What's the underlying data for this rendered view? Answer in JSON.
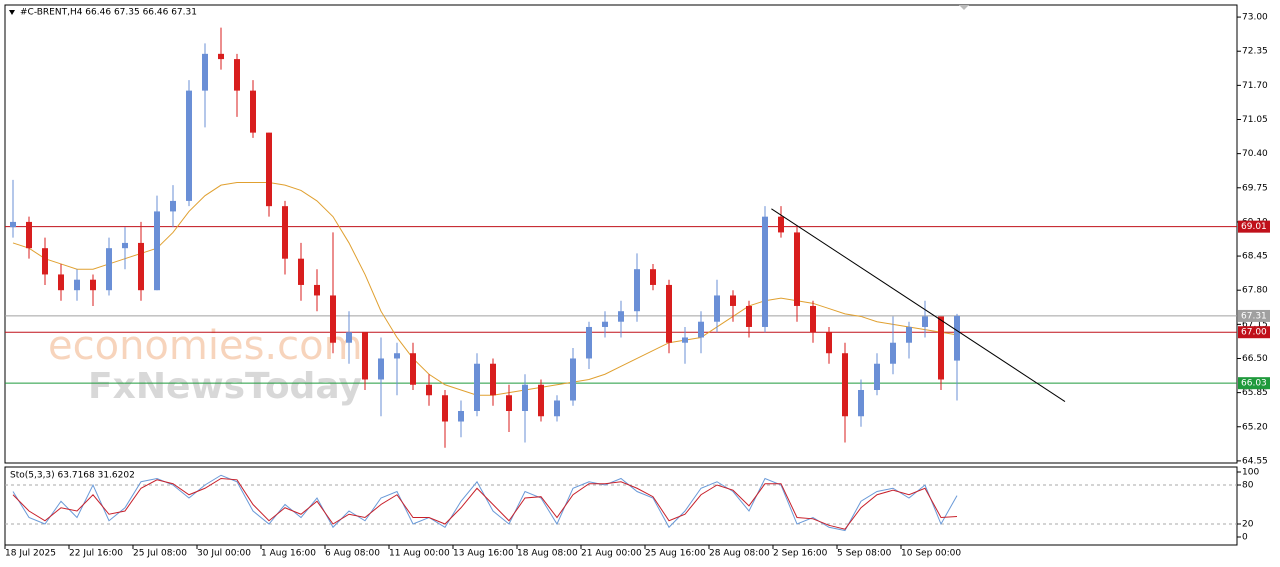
{
  "chart_data": [
    {
      "type": "candlestick",
      "title": "#C-BRENT,H4  66.46 67.35 66.46 67.31",
      "watermark": [
        "economies.com",
        "FxNewsToday"
      ],
      "ylim": [
        64.51,
        73.23
      ],
      "yticks": [
        {
          "value": 73.0,
          "label": "73.00"
        },
        {
          "value": 72.35,
          "label": "72.35"
        },
        {
          "value": 71.7,
          "label": "71.70"
        },
        {
          "value": 71.05,
          "label": "71.05"
        },
        {
          "value": 70.4,
          "label": "70.40"
        },
        {
          "value": 69.75,
          "label": "69.75"
        },
        {
          "value": 69.1,
          "label": "69.10"
        },
        {
          "value": 68.45,
          "label": "68.45"
        },
        {
          "value": 67.8,
          "label": "67.80"
        },
        {
          "value": 67.15,
          "label": "67.15"
        },
        {
          "value": 66.5,
          "label": "66.50"
        },
        {
          "value": 65.85,
          "label": "65.85"
        },
        {
          "value": 65.2,
          "label": "65.20"
        },
        {
          "value": 64.55,
          "label": "64.55"
        }
      ],
      "up_color": "#6a8fd6",
      "down_color": "#d81e1e",
      "open": [
        69.0,
        69.1,
        68.6,
        68.1,
        67.8,
        68.0,
        67.8,
        68.6,
        68.7,
        67.8,
        69.3,
        69.5,
        71.6,
        72.3,
        72.2,
        71.6,
        70.8,
        69.4,
        68.4,
        67.9,
        67.7,
        66.8,
        67.0,
        66.1,
        66.5,
        66.6,
        66.0,
        65.8,
        65.3,
        65.5,
        66.4,
        65.8,
        65.5,
        66.0,
        65.4,
        65.7,
        66.5,
        67.1,
        67.2,
        67.4,
        68.2,
        67.9,
        66.8,
        66.9,
        67.2,
        67.7,
        67.5,
        67.1,
        69.2,
        68.9,
        67.5,
        67.0,
        66.6,
        65.4,
        65.9,
        66.4,
        66.8,
        67.1,
        67.3,
        66.46
      ],
      "high": [
        69.9,
        69.2,
        68.8,
        68.3,
        68.2,
        68.1,
        68.8,
        69.0,
        69.1,
        69.6,
        69.8,
        71.8,
        72.5,
        72.8,
        72.3,
        71.8,
        70.8,
        69.5,
        68.7,
        68.2,
        68.9,
        67.4,
        67.0,
        66.9,
        66.8,
        66.8,
        66.2,
        65.9,
        65.7,
        66.6,
        66.5,
        66.0,
        66.2,
        66.1,
        65.8,
        66.7,
        67.2,
        67.4,
        67.6,
        68.5,
        68.3,
        68.0,
        67.1,
        67.4,
        68.0,
        67.8,
        67.6,
        69.4,
        69.4,
        69.0,
        67.6,
        67.1,
        66.8,
        66.1,
        66.6,
        67.3,
        67.2,
        67.6,
        67.3,
        67.35
      ],
      "low": [
        68.8,
        68.4,
        67.9,
        67.6,
        67.6,
        67.5,
        67.7,
        68.2,
        67.6,
        67.8,
        69.0,
        69.4,
        70.9,
        72.0,
        71.1,
        70.7,
        69.2,
        68.1,
        67.6,
        67.4,
        66.6,
        66.4,
        65.9,
        65.4,
        65.8,
        65.9,
        65.6,
        64.8,
        65.0,
        65.4,
        65.6,
        65.1,
        64.9,
        65.3,
        65.3,
        65.6,
        66.3,
        66.9,
        66.9,
        67.2,
        67.8,
        66.6,
        66.4,
        66.6,
        67.0,
        67.2,
        66.9,
        67.0,
        68.8,
        67.2,
        66.8,
        66.4,
        64.9,
        65.2,
        65.8,
        66.2,
        66.5,
        66.9,
        65.9,
        65.7
      ],
      "close": [
        69.1,
        68.6,
        68.1,
        67.8,
        68.0,
        67.8,
        68.6,
        68.7,
        67.8,
        69.3,
        69.5,
        71.6,
        72.3,
        72.2,
        71.6,
        70.8,
        69.4,
        68.4,
        67.9,
        67.7,
        66.8,
        67.0,
        66.1,
        66.5,
        66.6,
        66.0,
        65.8,
        65.3,
        65.5,
        66.4,
        65.8,
        65.5,
        66.0,
        65.4,
        65.7,
        66.5,
        67.1,
        67.2,
        67.4,
        68.2,
        67.9,
        66.8,
        66.9,
        67.2,
        67.7,
        67.5,
        67.1,
        69.2,
        68.9,
        67.5,
        67.0,
        66.6,
        65.4,
        65.9,
        66.4,
        66.8,
        67.1,
        67.3,
        66.1,
        67.31
      ],
      "ma": {
        "color": "#e0a030",
        "values": [
          68.7,
          68.6,
          68.4,
          68.3,
          68.2,
          68.2,
          68.3,
          68.4,
          68.5,
          68.6,
          68.9,
          69.3,
          69.6,
          69.8,
          69.85,
          69.85,
          69.85,
          69.8,
          69.7,
          69.5,
          69.2,
          68.7,
          68.1,
          67.4,
          66.9,
          66.5,
          66.2,
          66.0,
          65.9,
          65.8,
          65.8,
          65.85,
          65.9,
          65.95,
          66.0,
          66.05,
          66.1,
          66.2,
          66.35,
          66.5,
          66.65,
          66.8,
          66.85,
          66.9,
          67.1,
          67.3,
          67.5,
          67.6,
          67.65,
          67.6,
          67.55,
          67.45,
          67.35,
          67.3,
          67.2,
          67.15,
          67.1,
          67.05,
          67.0,
          66.95
        ]
      },
      "trendline": {
        "color": "#000000",
        "x": [
          47.9,
          66.25
        ],
        "y": [
          69.35,
          65.68
        ]
      },
      "levels": [
        {
          "value": 69.01,
          "label": "69.01",
          "color": "#c0101a"
        },
        {
          "value": 67.31,
          "label": "67.31",
          "color": "#a0a0a0"
        },
        {
          "value": 67.0,
          "label": "67.00",
          "color": "#c0101a"
        },
        {
          "value": 66.03,
          "label": "66.03",
          "color": "#1f9a3c"
        }
      ]
    },
    {
      "type": "line",
      "title": "Sto(5,3,3) 63.7168 31.6202",
      "ylim": [
        -12.3,
        107.7
      ],
      "yticks": [
        100,
        80,
        20,
        0
      ],
      "dashed_levels": [
        80,
        20
      ],
      "xticks": [
        {
          "value": 0,
          "label": "18 Jul 2025"
        },
        {
          "value": 4,
          "label": "22 Jul 16:00"
        },
        {
          "value": 8,
          "label": "25 Jul 08:00"
        },
        {
          "value": 12,
          "label": "30 Jul 00:00"
        },
        {
          "value": 16,
          "label": "1 Aug 16:00"
        },
        {
          "value": 20,
          "label": "6 Aug 08:00"
        },
        {
          "value": 24,
          "label": "11 Aug 00:00"
        },
        {
          "value": 28,
          "label": "13 Aug 16:00"
        },
        {
          "value": 32,
          "label": "18 Aug 08:00"
        },
        {
          "value": 36,
          "label": "21 Aug 00:00"
        },
        {
          "value": 40,
          "label": "25 Aug 16:00"
        },
        {
          "value": 44,
          "label": "28 Aug 08:00"
        },
        {
          "value": 48,
          "label": "2 Sep 16:00"
        },
        {
          "value": 52,
          "label": "5 Sep 08:00"
        },
        {
          "value": 56,
          "label": "10 Sep 00:00"
        }
      ],
      "series": [
        {
          "color": "#6a9ad8",
          "values": [
            70,
            30,
            20,
            55,
            30,
            80,
            25,
            45,
            85,
            90,
            80,
            60,
            80,
            95,
            85,
            40,
            20,
            50,
            30,
            60,
            15,
            40,
            25,
            60,
            70,
            20,
            30,
            15,
            55,
            85,
            40,
            20,
            70,
            60,
            20,
            75,
            85,
            80,
            90,
            70,
            60,
            15,
            40,
            75,
            85,
            70,
            40,
            90,
            80,
            20,
            30,
            15,
            10,
            55,
            70,
            75,
            60,
            80,
            20,
            63.7168
          ]
        },
        {
          "color": "#c8202a",
          "values": [
            65,
            40,
            25,
            45,
            40,
            65,
            35,
            40,
            75,
            88,
            82,
            65,
            75,
            90,
            88,
            50,
            25,
            45,
            35,
            55,
            20,
            35,
            30,
            50,
            65,
            30,
            30,
            20,
            45,
            75,
            50,
            25,
            60,
            62,
            30,
            65,
            82,
            82,
            85,
            75,
            62,
            25,
            35,
            65,
            80,
            72,
            48,
            82,
            82,
            30,
            28,
            18,
            12,
            45,
            65,
            72,
            65,
            75,
            30,
            31.6202
          ]
        }
      ]
    }
  ]
}
